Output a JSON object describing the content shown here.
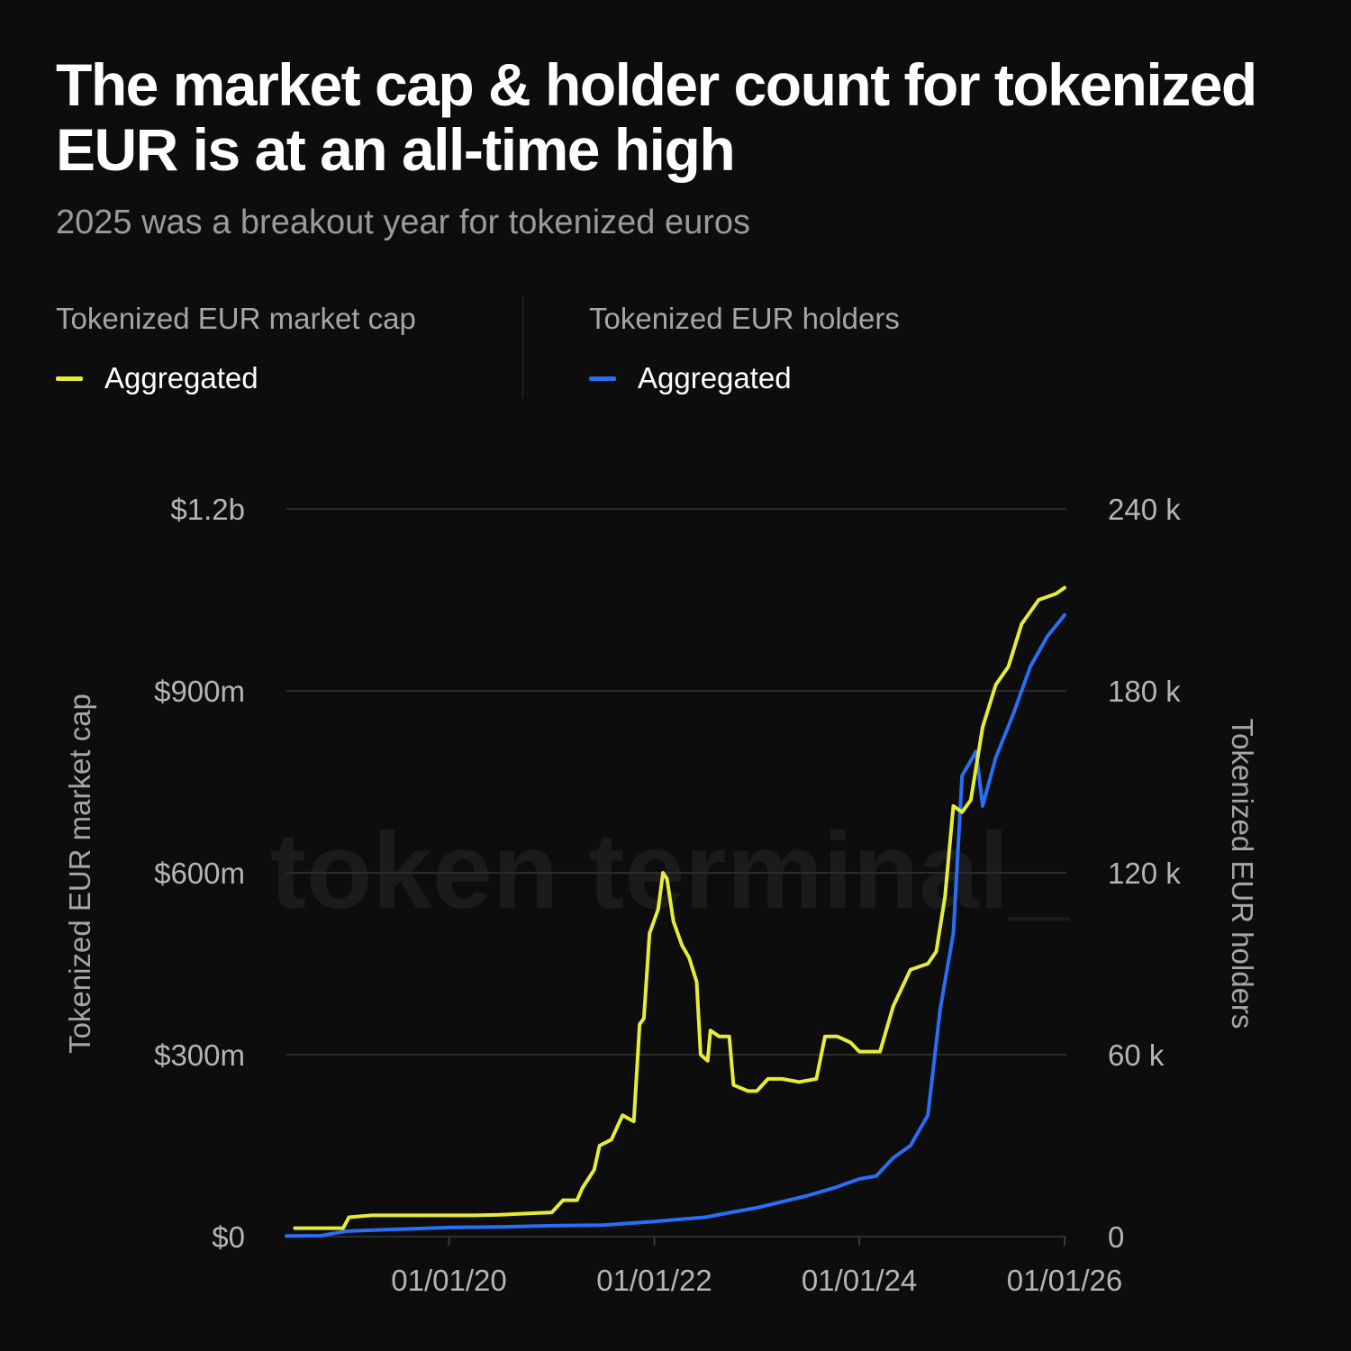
{
  "title": "The market cap & holder count for tokenized EUR is at an all-time high",
  "subtitle": "2025 was a breakout year for tokenized euros",
  "watermark": "token terminal_",
  "legend": {
    "left": {
      "header": "Tokenized EUR market cap",
      "item": "Aggregated",
      "color": "#e6ec3a"
    },
    "right": {
      "header": "Tokenized EUR holders",
      "item": "Aggregated",
      "color": "#2a6ef5"
    }
  },
  "chart_data": {
    "type": "line",
    "x_type": "date",
    "xlim": [
      "2018-06-01",
      "2026-01-01"
    ],
    "x_ticks": [
      "2020-01-01",
      "2022-01-01",
      "2024-01-01",
      "2026-01-01"
    ],
    "x_tick_labels": [
      "01/01/20",
      "01/01/22",
      "01/01/24",
      "01/01/26"
    ],
    "y_left": {
      "label": "Tokenized EUR market cap",
      "lim": [
        0,
        1200000000
      ],
      "ticks": [
        0,
        300000000,
        600000000,
        900000000,
        1200000000
      ],
      "tick_labels": [
        "$0",
        "$300m",
        "$600m",
        "$900m",
        "$1.2b"
      ]
    },
    "y_right": {
      "label": "Tokenized EUR holders",
      "lim": [
        0,
        240000
      ],
      "ticks": [
        0,
        60000,
        120000,
        180000,
        240000
      ],
      "tick_labels": [
        "0",
        "60 k",
        "120 k",
        "180 k",
        "240 k"
      ]
    },
    "grid": true,
    "series": [
      {
        "name": "Aggregated",
        "axis": "left",
        "color": "#e6ec3a",
        "points": [
          [
            "2018-07-01",
            14000000
          ],
          [
            "2018-10-01",
            14000000
          ],
          [
            "2018-12-20",
            14000000
          ],
          [
            "2019-01-10",
            32000000
          ],
          [
            "2019-04-01",
            35000000
          ],
          [
            "2019-07-01",
            35000000
          ],
          [
            "2019-10-01",
            35000000
          ],
          [
            "2020-01-01",
            35000000
          ],
          [
            "2020-04-01",
            35000000
          ],
          [
            "2020-07-01",
            36000000
          ],
          [
            "2020-10-01",
            38000000
          ],
          [
            "2021-01-01",
            40000000
          ],
          [
            "2021-02-10",
            60000000
          ],
          [
            "2021-04-01",
            60000000
          ],
          [
            "2021-04-20",
            80000000
          ],
          [
            "2021-06-01",
            110000000
          ],
          [
            "2021-06-20",
            150000000
          ],
          [
            "2021-08-01",
            160000000
          ],
          [
            "2021-09-10",
            200000000
          ],
          [
            "2021-10-20",
            190000000
          ],
          [
            "2021-11-10",
            350000000
          ],
          [
            "2021-11-25",
            360000000
          ],
          [
            "2021-12-15",
            500000000
          ],
          [
            "2022-01-15",
            540000000
          ],
          [
            "2022-02-01",
            600000000
          ],
          [
            "2022-02-15",
            590000000
          ],
          [
            "2022-03-10",
            520000000
          ],
          [
            "2022-04-10",
            480000000
          ],
          [
            "2022-05-05",
            460000000
          ],
          [
            "2022-06-01",
            420000000
          ],
          [
            "2022-06-15",
            300000000
          ],
          [
            "2022-07-10",
            290000000
          ],
          [
            "2022-07-20",
            340000000
          ],
          [
            "2022-08-20",
            330000000
          ],
          [
            "2022-09-25",
            330000000
          ],
          [
            "2022-10-10",
            250000000
          ],
          [
            "2022-12-01",
            240000000
          ],
          [
            "2023-01-01",
            240000000
          ],
          [
            "2023-02-10",
            260000000
          ],
          [
            "2023-04-01",
            260000000
          ],
          [
            "2023-06-01",
            255000000
          ],
          [
            "2023-08-01",
            260000000
          ],
          [
            "2023-09-01",
            330000000
          ],
          [
            "2023-10-15",
            330000000
          ],
          [
            "2023-12-01",
            320000000
          ],
          [
            "2024-01-01",
            305000000
          ],
          [
            "2024-03-15",
            305000000
          ],
          [
            "2024-05-01",
            380000000
          ],
          [
            "2024-07-01",
            440000000
          ],
          [
            "2024-09-01",
            450000000
          ],
          [
            "2024-10-01",
            470000000
          ],
          [
            "2024-11-01",
            560000000
          ],
          [
            "2024-12-01",
            710000000
          ],
          [
            "2025-01-01",
            700000000
          ],
          [
            "2025-02-01",
            720000000
          ],
          [
            "2025-03-15",
            840000000
          ],
          [
            "2025-05-01",
            910000000
          ],
          [
            "2025-06-15",
            940000000
          ],
          [
            "2025-08-01",
            1010000000
          ],
          [
            "2025-10-01",
            1050000000
          ],
          [
            "2025-12-01",
            1060000000
          ],
          [
            "2026-01-01",
            1070000000
          ]
        ]
      },
      {
        "name": "Aggregated",
        "axis": "right",
        "color": "#2a6ef5",
        "points": [
          [
            "2018-06-01",
            200
          ],
          [
            "2018-10-01",
            300
          ],
          [
            "2019-01-01",
            1800
          ],
          [
            "2019-07-01",
            2400
          ],
          [
            "2020-01-01",
            3000
          ],
          [
            "2020-07-01",
            3200
          ],
          [
            "2021-01-01",
            3600
          ],
          [
            "2021-07-01",
            3800
          ],
          [
            "2022-01-01",
            5000
          ],
          [
            "2022-07-01",
            6400
          ],
          [
            "2022-10-01",
            8000
          ],
          [
            "2023-01-01",
            9500
          ],
          [
            "2023-04-01",
            11500
          ],
          [
            "2023-07-01",
            13500
          ],
          [
            "2023-10-01",
            16000
          ],
          [
            "2024-01-01",
            19000
          ],
          [
            "2024-03-01",
            20000
          ],
          [
            "2024-05-01",
            26000
          ],
          [
            "2024-07-01",
            30000
          ],
          [
            "2024-09-01",
            40000
          ],
          [
            "2024-10-15",
            75000
          ],
          [
            "2024-12-01",
            100000
          ],
          [
            "2025-01-01",
            152000
          ],
          [
            "2025-02-20",
            160000
          ],
          [
            "2025-03-15",
            142000
          ],
          [
            "2025-05-01",
            158000
          ],
          [
            "2025-07-01",
            172000
          ],
          [
            "2025-09-01",
            188000
          ],
          [
            "2025-11-01",
            198000
          ],
          [
            "2026-01-01",
            205000
          ]
        ]
      }
    ]
  }
}
